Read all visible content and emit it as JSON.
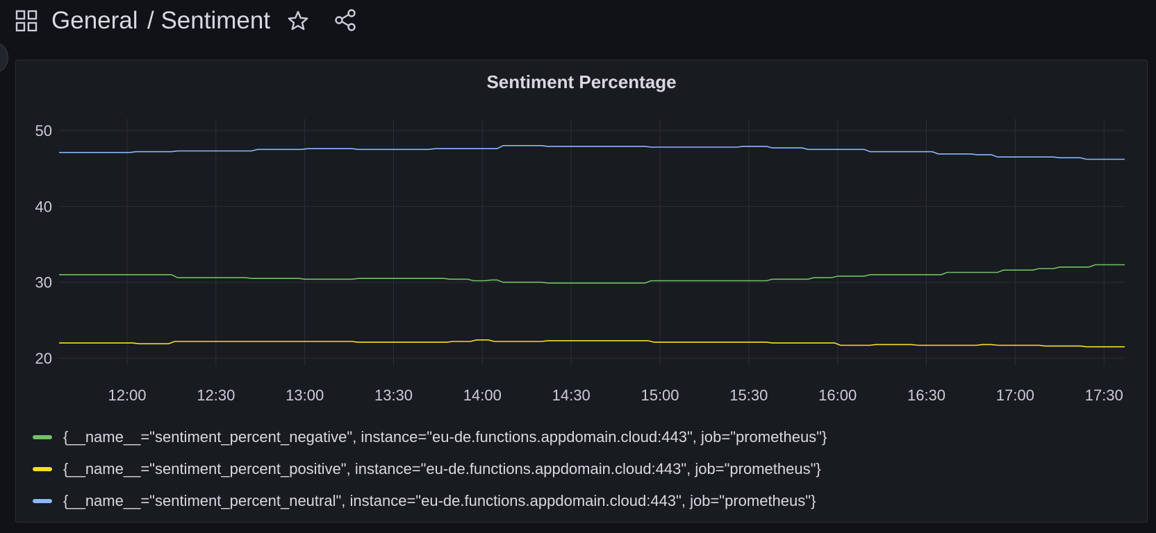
{
  "header": {
    "folder": "General",
    "title": "/ Sentiment",
    "icons": [
      "dashboards-grid-icon",
      "star-icon",
      "share-icon"
    ]
  },
  "panel": {
    "title": "Sentiment Percentage"
  },
  "chart_data": {
    "type": "line",
    "title": "Sentiment Percentage",
    "xlabel": "",
    "ylabel": "",
    "x_ticks": [
      "12:00",
      "12:30",
      "13:00",
      "13:30",
      "14:00",
      "14:30",
      "15:00",
      "15:30",
      "16:00",
      "16:30",
      "17:00",
      "17:30"
    ],
    "y_ticks": [
      20,
      30,
      40,
      50
    ],
    "xlim": [
      "11:37",
      "17:37"
    ],
    "ylim": [
      19,
      51
    ],
    "grid": true,
    "legend_position": "bottom",
    "series": [
      {
        "name": "{__name__=\"sentiment_percent_negative\", instance=\"eu-de.functions.appdomain.cloud:443\", job=\"prometheus\"}",
        "color": "#73bf69",
        "points": [
          [
            "11:37",
            31.0
          ],
          [
            "12:15",
            31.0
          ],
          [
            "12:17",
            30.6
          ],
          [
            "12:40",
            30.6
          ],
          [
            "12:42",
            30.5
          ],
          [
            "12:58",
            30.5
          ],
          [
            "13:00",
            30.4
          ],
          [
            "13:16",
            30.4
          ],
          [
            "13:18",
            30.5
          ],
          [
            "13:47",
            30.5
          ],
          [
            "13:49",
            30.4
          ],
          [
            "13:55",
            30.4
          ],
          [
            "13:57",
            30.2
          ],
          [
            "14:01",
            30.2
          ],
          [
            "14:03",
            30.3
          ],
          [
            "14:05",
            30.3
          ],
          [
            "14:07",
            30.0
          ],
          [
            "14:20",
            30.0
          ],
          [
            "14:22",
            29.9
          ],
          [
            "14:55",
            29.9
          ],
          [
            "14:57",
            30.2
          ],
          [
            "15:36",
            30.2
          ],
          [
            "15:38",
            30.4
          ],
          [
            "15:50",
            30.4
          ],
          [
            "15:52",
            30.6
          ],
          [
            "15:58",
            30.6
          ],
          [
            "16:00",
            30.8
          ],
          [
            "16:09",
            30.8
          ],
          [
            "16:11",
            31.0
          ],
          [
            "16:35",
            31.0
          ],
          [
            "16:37",
            31.3
          ],
          [
            "16:54",
            31.3
          ],
          [
            "16:56",
            31.6
          ],
          [
            "17:06",
            31.6
          ],
          [
            "17:08",
            31.8
          ],
          [
            "17:13",
            31.8
          ],
          [
            "17:15",
            32.0
          ],
          [
            "17:25",
            32.0
          ],
          [
            "17:27",
            32.3
          ],
          [
            "17:37",
            32.3
          ]
        ]
      },
      {
        "name": "{__name__=\"sentiment_percent_positive\", instance=\"eu-de.functions.appdomain.cloud:443\", job=\"prometheus\"}",
        "color": "#fade2a",
        "points": [
          [
            "11:37",
            22.0
          ],
          [
            "12:02",
            22.0
          ],
          [
            "12:04",
            21.9
          ],
          [
            "12:14",
            21.9
          ],
          [
            "12:16",
            22.2
          ],
          [
            "13:16",
            22.2
          ],
          [
            "13:18",
            22.1
          ],
          [
            "13:48",
            22.1
          ],
          [
            "13:50",
            22.2
          ],
          [
            "13:56",
            22.2
          ],
          [
            "13:58",
            22.4
          ],
          [
            "14:02",
            22.4
          ],
          [
            "14:04",
            22.2
          ],
          [
            "14:20",
            22.2
          ],
          [
            "14:22",
            22.3
          ],
          [
            "14:56",
            22.3
          ],
          [
            "14:58",
            22.1
          ],
          [
            "15:36",
            22.1
          ],
          [
            "15:38",
            22.0
          ],
          [
            "15:59",
            22.0
          ],
          [
            "16:01",
            21.7
          ],
          [
            "16:11",
            21.7
          ],
          [
            "16:13",
            21.8
          ],
          [
            "16:25",
            21.8
          ],
          [
            "16:27",
            21.7
          ],
          [
            "16:47",
            21.7
          ],
          [
            "16:49",
            21.8
          ],
          [
            "16:52",
            21.8
          ],
          [
            "16:54",
            21.7
          ],
          [
            "17:08",
            21.7
          ],
          [
            "17:10",
            21.6
          ],
          [
            "17:22",
            21.6
          ],
          [
            "17:24",
            21.5
          ],
          [
            "17:37",
            21.5
          ]
        ]
      },
      {
        "name": "{__name__=\"sentiment_percent_neutral\", instance=\"eu-de.functions.appdomain.cloud:443\", job=\"prometheus\"}",
        "color": "#8ab8ff",
        "points": [
          [
            "11:37",
            47.1
          ],
          [
            "12:01",
            47.1
          ],
          [
            "12:03",
            47.2
          ],
          [
            "12:15",
            47.2
          ],
          [
            "12:17",
            47.3
          ],
          [
            "12:42",
            47.3
          ],
          [
            "12:44",
            47.5
          ],
          [
            "12:59",
            47.5
          ],
          [
            "13:01",
            47.6
          ],
          [
            "13:16",
            47.6
          ],
          [
            "13:18",
            47.5
          ],
          [
            "13:42",
            47.5
          ],
          [
            "13:44",
            47.6
          ],
          [
            "14:05",
            47.6
          ],
          [
            "14:07",
            48.0
          ],
          [
            "14:20",
            48.0
          ],
          [
            "14:22",
            47.9
          ],
          [
            "14:55",
            47.9
          ],
          [
            "14:57",
            47.8
          ],
          [
            "15:26",
            47.8
          ],
          [
            "15:28",
            47.9
          ],
          [
            "15:36",
            47.9
          ],
          [
            "15:38",
            47.7
          ],
          [
            "15:48",
            47.7
          ],
          [
            "15:50",
            47.5
          ],
          [
            "16:09",
            47.5
          ],
          [
            "16:11",
            47.2
          ],
          [
            "16:32",
            47.2
          ],
          [
            "16:34",
            46.9
          ],
          [
            "16:45",
            46.9
          ],
          [
            "16:47",
            46.8
          ],
          [
            "16:52",
            46.8
          ],
          [
            "16:54",
            46.5
          ],
          [
            "17:13",
            46.5
          ],
          [
            "17:15",
            46.4
          ],
          [
            "17:22",
            46.4
          ],
          [
            "17:24",
            46.2
          ],
          [
            "17:37",
            46.2
          ]
        ]
      }
    ]
  },
  "style": {
    "background": "#111217",
    "panel_background": "#181b1f",
    "grid_color": "#2c2f36",
    "axis_text_color": "#ccccdc"
  }
}
